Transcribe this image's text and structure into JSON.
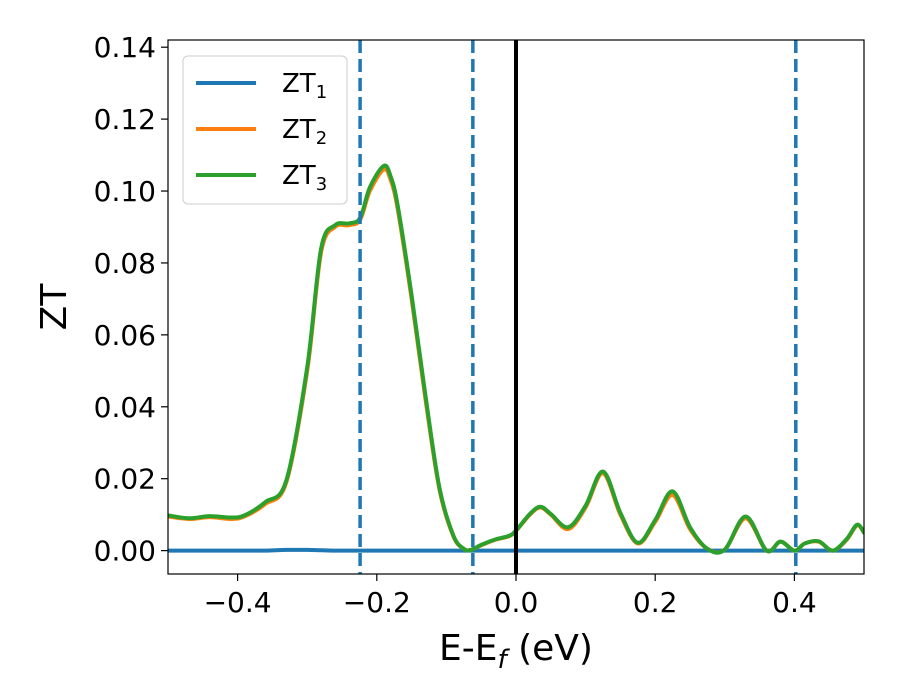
{
  "chart_data": {
    "type": "line",
    "title": "",
    "xlabel": "E-E",
    "xlabel_sub": "f",
    "xlabel_unit": " (eV)",
    "ylabel": "ZT",
    "xlim": [
      -0.5,
      0.5
    ],
    "ylim": [
      -0.0065,
      0.142
    ],
    "xticks": [
      -0.4,
      -0.2,
      0.0,
      0.2,
      0.4
    ],
    "xtick_labels": [
      "−0.4",
      "−0.2",
      "0.0",
      "0.2",
      "0.4"
    ],
    "yticks": [
      0.0,
      0.02,
      0.04,
      0.06,
      0.08,
      0.1,
      0.12,
      0.14
    ],
    "ytick_labels": [
      "0.00",
      "0.02",
      "0.04",
      "0.06",
      "0.08",
      "0.10",
      "0.12",
      "0.14"
    ],
    "grid": false,
    "legend_position": "top-left",
    "vlines": [
      {
        "x": -0.224,
        "style": "dashed",
        "color": "#1f77b4"
      },
      {
        "x": -0.062,
        "style": "dashed",
        "color": "#1f77b4"
      },
      {
        "x": 0.0,
        "style": "solid",
        "color": "#000000"
      },
      {
        "x": 0.402,
        "style": "dashed",
        "color": "#1f77b4"
      }
    ],
    "x": [
      -0.5,
      -0.47,
      -0.44,
      -0.41,
      -0.39,
      -0.36,
      -0.33,
      -0.3,
      -0.28,
      -0.26,
      -0.24,
      -0.224,
      -0.21,
      -0.19,
      -0.18,
      -0.17,
      -0.15,
      -0.13,
      -0.11,
      -0.09,
      -0.075,
      -0.065,
      -0.05,
      -0.03,
      -0.01,
      0.0,
      0.02,
      0.035,
      0.05,
      0.075,
      0.1,
      0.125,
      0.15,
      0.175,
      0.2,
      0.225,
      0.25,
      0.275,
      0.3,
      0.33,
      0.36,
      0.38,
      0.4,
      0.415,
      0.435,
      0.455,
      0.475,
      0.49,
      0.5
    ],
    "series": [
      {
        "name": "ZT",
        "name_sub": "1",
        "color": "#1f77b4",
        "values": [
          0.0,
          0.0,
          0.0,
          0.0,
          0.0,
          0.0,
          0.0002,
          0.0002,
          0.0001,
          0.0,
          0.0,
          0.0,
          0.0,
          0.0,
          0.0,
          0.0,
          0.0,
          0.0,
          0.0,
          0.0,
          0.0,
          0.0,
          0.0,
          0.0,
          0.0,
          0.0,
          0.0,
          0.0,
          0.0,
          0.0,
          0.0,
          0.0,
          0.0,
          0.0,
          0.0,
          0.0,
          0.0,
          0.0,
          0.0,
          0.0,
          0.0,
          0.0,
          0.0,
          0.0,
          0.0,
          0.0,
          0.0,
          0.0,
          0.0
        ]
      },
      {
        "name": "ZT",
        "name_sub": "2",
        "color": "#ff7f0e",
        "values": [
          0.0095,
          0.0088,
          0.0093,
          0.0088,
          0.0095,
          0.013,
          0.019,
          0.05,
          0.083,
          0.09,
          0.0905,
          0.092,
          0.1,
          0.106,
          0.103,
          0.095,
          0.07,
          0.042,
          0.017,
          0.004,
          0.0005,
          0.0002,
          0.0015,
          0.003,
          0.004,
          0.0055,
          0.01,
          0.012,
          0.01,
          0.006,
          0.012,
          0.0215,
          0.01,
          0.002,
          0.008,
          0.0155,
          0.006,
          0.0005,
          0.0003,
          0.009,
          0.0,
          0.0025,
          0.0,
          0.002,
          0.0025,
          0.0,
          0.003,
          0.007,
          0.005
        ]
      },
      {
        "name": "ZT",
        "name_sub": "3",
        "color": "#2ca02c",
        "values": [
          0.0098,
          0.009,
          0.0096,
          0.0092,
          0.0098,
          0.0135,
          0.0195,
          0.051,
          0.084,
          0.0905,
          0.091,
          0.0925,
          0.101,
          0.107,
          0.104,
          0.096,
          0.071,
          0.043,
          0.0175,
          0.0042,
          0.0005,
          0.0002,
          0.0016,
          0.0031,
          0.0041,
          0.0056,
          0.0102,
          0.0122,
          0.0102,
          0.0065,
          0.0125,
          0.022,
          0.0105,
          0.0022,
          0.0085,
          0.0165,
          0.0065,
          0.0005,
          0.0003,
          0.0095,
          0.0,
          0.0025,
          0.0,
          0.002,
          0.0026,
          0.0,
          0.0032,
          0.0072,
          0.005
        ]
      }
    ]
  }
}
